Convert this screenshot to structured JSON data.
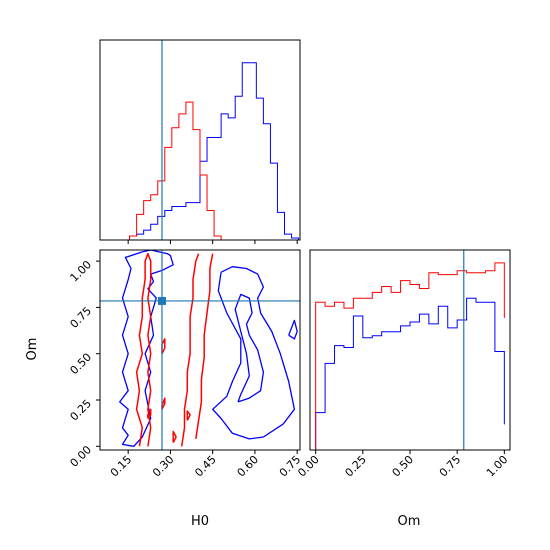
{
  "chart_data": [
    {
      "type": "histogram",
      "panel": "H0 marginal",
      "x_range": [
        0.05,
        0.76
      ],
      "truth_x": 0.27,
      "bins_x": [
        0.13,
        0.155,
        0.18,
        0.205,
        0.23,
        0.255,
        0.28,
        0.305,
        0.33,
        0.355,
        0.38,
        0.405,
        0.43,
        0.455,
        0.48,
        0.505,
        0.53,
        0.555,
        0.58,
        0.605,
        0.63,
        0.655,
        0.68,
        0.705,
        0.73,
        0.755
      ],
      "series": [
        {
          "color": "#0000ff",
          "counts": [
            0.0,
            0.02,
            0.03,
            0.05,
            0.08,
            0.12,
            0.15,
            0.17,
            0.17,
            0.19,
            0.19,
            0.4,
            0.52,
            0.52,
            0.64,
            0.62,
            0.73,
            0.9,
            0.9,
            0.72,
            0.59,
            0.39,
            0.14,
            0.03,
            0.01
          ]
        },
        {
          "color": "#ff0000",
          "counts": [
            0.0,
            0.02,
            0.13,
            0.2,
            0.23,
            0.3,
            0.47,
            0.57,
            0.64,
            0.7,
            0.56,
            0.33,
            0.15,
            0.02,
            0,
            0,
            0,
            0,
            0,
            0,
            0,
            0,
            0,
            0,
            0
          ]
        }
      ]
    },
    {
      "type": "contour",
      "panel": "H0 vs Om",
      "x_range": [
        0.05,
        0.76
      ],
      "y_range": [
        -0.02,
        1.06
      ],
      "xlabel": "H0",
      "ylabel": "Om",
      "xticks": [
        "0.15",
        "0.30",
        "0.45",
        "0.60",
        "0.75"
      ],
      "xtick_values": [
        0.15,
        0.3,
        0.45,
        0.6,
        0.75
      ],
      "yticks": [
        "0.00",
        "0.25",
        "0.50",
        "0.75",
        "1.00"
      ],
      "ytick_values": [
        0.0,
        0.25,
        0.5,
        0.75,
        1.0
      ],
      "truth": [
        0.27,
        0.785
      ],
      "series": [
        {
          "color": "#0000ff",
          "contours": [
            [
              [
                0.2,
                1.05
              ],
              [
                0.23,
                1.06
              ],
              [
                0.26,
                1.05
              ],
              [
                0.29,
                1.04
              ],
              [
                0.3,
                1.03
              ],
              [
                0.31,
                0.98
              ],
              [
                0.27,
                0.95
              ],
              [
                0.23,
                0.93
              ],
              [
                0.24,
                0.89
              ],
              [
                0.22,
                0.85
              ],
              [
                0.25,
                0.8
              ],
              [
                0.23,
                0.7
              ],
              [
                0.24,
                0.6
              ],
              [
                0.21,
                0.5
              ],
              [
                0.23,
                0.4
              ],
              [
                0.21,
                0.3
              ],
              [
                0.23,
                0.15
              ],
              [
                0.2,
                0.05
              ],
              [
                0.17,
                0.0
              ],
              [
                0.13,
                0.01
              ],
              [
                0.15,
                0.06
              ],
              [
                0.13,
                0.1
              ],
              [
                0.15,
                0.2
              ],
              [
                0.12,
                0.24
              ],
              [
                0.15,
                0.3
              ],
              [
                0.13,
                0.4
              ],
              [
                0.15,
                0.5
              ],
              [
                0.13,
                0.6
              ],
              [
                0.15,
                0.7
              ],
              [
                0.13,
                0.8
              ],
              [
                0.15,
                0.9
              ],
              [
                0.16,
                0.96
              ],
              [
                0.14,
                1.02
              ],
              [
                0.2,
                1.05
              ]
            ],
            [
              [
                0.48,
                0.94
              ],
              [
                0.52,
                0.97
              ],
              [
                0.57,
                0.96
              ],
              [
                0.61,
                0.93
              ],
              [
                0.63,
                0.86
              ],
              [
                0.61,
                0.8
              ],
              [
                0.62,
                0.72
              ],
              [
                0.66,
                0.62
              ],
              [
                0.69,
                0.5
              ],
              [
                0.72,
                0.35
              ],
              [
                0.74,
                0.2
              ],
              [
                0.7,
                0.12
              ],
              [
                0.63,
                0.05
              ],
              [
                0.58,
                0.04
              ],
              [
                0.52,
                0.07
              ],
              [
                0.48,
                0.15
              ],
              [
                0.45,
                0.2
              ],
              [
                0.5,
                0.27
              ],
              [
                0.52,
                0.35
              ],
              [
                0.55,
                0.45
              ],
              [
                0.55,
                0.58
              ],
              [
                0.5,
                0.72
              ],
              [
                0.47,
                0.84
              ],
              [
                0.48,
                0.94
              ]
            ],
            [
              [
                0.54,
                0.24
              ],
              [
                0.58,
                0.26
              ],
              [
                0.62,
                0.3
              ],
              [
                0.63,
                0.4
              ],
              [
                0.61,
                0.52
              ],
              [
                0.58,
                0.6
              ],
              [
                0.57,
                0.66
              ],
              [
                0.59,
                0.72
              ],
              [
                0.58,
                0.8
              ],
              [
                0.55,
                0.82
              ],
              [
                0.53,
                0.74
              ],
              [
                0.55,
                0.62
              ],
              [
                0.57,
                0.5
              ],
              [
                0.58,
                0.38
              ],
              [
                0.55,
                0.28
              ],
              [
                0.54,
                0.24
              ]
            ],
            [
              [
                0.72,
                0.6
              ],
              [
                0.74,
                0.58
              ],
              [
                0.75,
                0.62
              ],
              [
                0.74,
                0.68
              ],
              [
                0.72,
                0.6
              ]
            ]
          ]
        },
        {
          "color": "#ff0000",
          "contours": [
            [
              [
                0.19,
                0.0
              ],
              [
                0.2,
                0.1
              ],
              [
                0.18,
                0.2
              ],
              [
                0.19,
                0.3
              ],
              [
                0.18,
                0.4
              ],
              [
                0.2,
                0.5
              ],
              [
                0.19,
                0.6
              ],
              [
                0.2,
                0.7
              ],
              [
                0.2,
                0.8
              ],
              [
                0.21,
                0.9
              ],
              [
                0.21,
                1.0
              ],
              [
                0.22,
                1.04
              ],
              [
                0.23,
                1.0
              ],
              [
                0.23,
                0.9
              ],
              [
                0.22,
                0.8
              ],
              [
                0.23,
                0.7
              ],
              [
                0.22,
                0.6
              ],
              [
                0.23,
                0.5
              ],
              [
                0.22,
                0.4
              ],
              [
                0.23,
                0.3
              ],
              [
                0.22,
                0.2
              ],
              [
                0.23,
                0.1
              ],
              [
                0.22,
                0.0
              ]
            ],
            [
              [
                0.34,
                0.0
              ],
              [
                0.35,
                0.1
              ],
              [
                0.35,
                0.2
              ],
              [
                0.36,
                0.3
              ],
              [
                0.36,
                0.4
              ],
              [
                0.37,
                0.5
              ],
              [
                0.37,
                0.6
              ],
              [
                0.37,
                0.7
              ],
              [
                0.38,
                0.8
              ],
              [
                0.38,
                0.9
              ],
              [
                0.39,
                1.0
              ],
              [
                0.4,
                1.04
              ]
            ],
            [
              [
                0.39,
                0.04
              ],
              [
                0.4,
                0.14
              ],
              [
                0.41,
                0.24
              ],
              [
                0.41,
                0.36
              ],
              [
                0.42,
                0.48
              ],
              [
                0.42,
                0.6
              ],
              [
                0.43,
                0.72
              ],
              [
                0.44,
                0.84
              ],
              [
                0.44,
                0.96
              ],
              [
                0.45,
                1.04
              ]
            ],
            [
              [
                0.27,
                0.5
              ],
              [
                0.28,
                0.53
              ],
              [
                0.28,
                0.58
              ],
              [
                0.27,
                0.55
              ],
              [
                0.27,
                0.5
              ]
            ],
            [
              [
                0.27,
                0.2
              ],
              [
                0.28,
                0.23
              ],
              [
                0.28,
                0.26
              ],
              [
                0.27,
                0.22
              ],
              [
                0.27,
                0.2
              ]
            ],
            [
              [
                0.22,
                0.15
              ],
              [
                0.23,
                0.17
              ],
              [
                0.23,
                0.2
              ],
              [
                0.22,
                0.17
              ],
              [
                0.22,
                0.15
              ]
            ],
            [
              [
                0.36,
                0.14
              ],
              [
                0.37,
                0.17
              ],
              [
                0.36,
                0.19
              ],
              [
                0.36,
                0.14
              ]
            ],
            [
              [
                0.31,
                0.02
              ],
              [
                0.32,
                0.05
              ],
              [
                0.31,
                0.08
              ],
              [
                0.31,
                0.02
              ]
            ]
          ]
        }
      ]
    },
    {
      "type": "histogram",
      "panel": "Om marginal",
      "x_range": [
        -0.03,
        1.03
      ],
      "xlabel": "Om",
      "xticks": [
        "0.00",
        "0.25",
        "0.50",
        "0.75",
        "1.00"
      ],
      "xtick_values": [
        0.0,
        0.25,
        0.5,
        0.75,
        1.0
      ],
      "truth_x": 0.785,
      "bins_x": [
        0.0,
        0.05,
        0.1,
        0.15,
        0.2,
        0.25,
        0.3,
        0.35,
        0.4,
        0.45,
        0.5,
        0.55,
        0.6,
        0.65,
        0.7,
        0.75,
        0.8,
        0.85,
        0.9,
        0.95,
        1.0
      ],
      "series": [
        {
          "color": "#0000ff",
          "counts": [
            0.19,
            0.44,
            0.53,
            0.52,
            0.68,
            0.57,
            0.58,
            0.6,
            0.6,
            0.63,
            0.65,
            0.69,
            0.64,
            0.73,
            0.62,
            0.66,
            0.77,
            0.75,
            0.75,
            0.5,
            0.13
          ]
        },
        {
          "color": "#ff0000",
          "counts": [
            0.75,
            0.73,
            0.75,
            0.72,
            0.77,
            0.77,
            0.8,
            0.83,
            0.8,
            0.86,
            0.84,
            0.82,
            0.9,
            0.89,
            0.89,
            0.91,
            0.9,
            0.9,
            0.91,
            0.95,
            0.67
          ]
        }
      ]
    }
  ]
}
